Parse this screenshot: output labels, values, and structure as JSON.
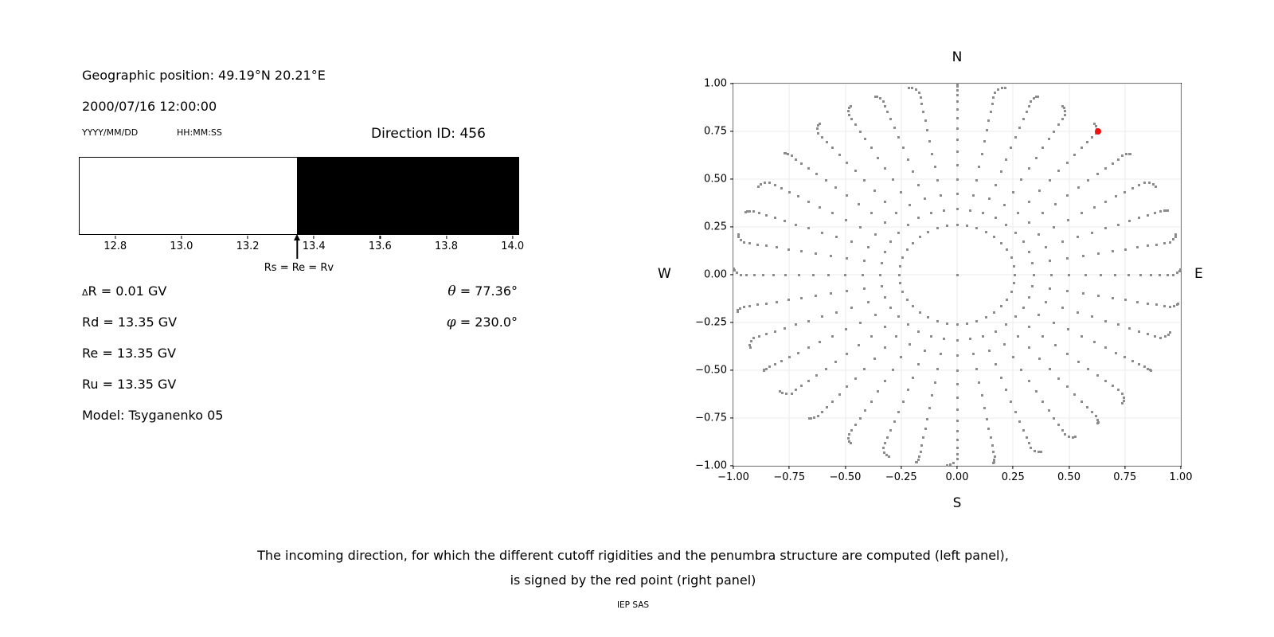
{
  "info_panel": {
    "geo_position": "Geographic position: 49.19°N 20.21°E",
    "datetime": "2000/07/16 12:00:00",
    "date_format_hint": "YYYY/MM/DD",
    "time_format_hint": "HH:MM:SS",
    "direction_id": "Direction ID: 456",
    "delta_r": {
      "sym": "Δ",
      "rest": "R = 0.01 GV"
    },
    "rd": "Rd = 13.35 GV",
    "re": "Re = 13.35 GV",
    "ru": "Ru = 13.35 GV",
    "model": "Model: Tsyganenko 05",
    "theta": {
      "sym": "θ",
      "rest": " = 77.36°"
    },
    "phi": {
      "sym": "φ",
      "rest": " = 230.0°"
    }
  },
  "caption": {
    "line1": "The incoming direction, for which the different cutoff rigidities and the penumbra structure are computed (left panel),",
    "line2": "is signed by the red point (right panel)",
    "credit": "IEP SAS"
  },
  "chart_data": [
    {
      "type": "bar",
      "name": "penumbra-structure",
      "description": "Penumbra structure of cutoff rigidity: white = allowed below 13.35 GV, black = forbidden above 13.35 GV",
      "xlim": [
        12.69,
        14.02
      ],
      "x_ticks": [
        12.8,
        13.0,
        13.2,
        13.4,
        13.6,
        13.8,
        14.0
      ],
      "x_tick_labels": [
        "12.8",
        "13.0",
        "13.2",
        "13.4",
        "13.6",
        "13.8",
        "14.0"
      ],
      "segments": [
        {
          "from": 12.69,
          "to": 13.35,
          "color": "#ffffff",
          "meaning": "allowed"
        },
        {
          "from": 13.35,
          "to": 14.02,
          "color": "#000000",
          "meaning": "forbidden"
        }
      ],
      "annotation": {
        "value": 13.35,
        "label": "Rs = Re = Rv"
      },
      "grid": false
    },
    {
      "type": "scatter",
      "name": "incoming-direction-map",
      "cardinals": {
        "top": "N",
        "bottom": "S",
        "left": "W",
        "right": "E"
      },
      "xlim": [
        -1,
        1
      ],
      "ylim": [
        -1,
        1
      ],
      "x_ticks": [
        -1,
        -0.75,
        -0.5,
        -0.25,
        0,
        0.25,
        0.5,
        0.75,
        1
      ],
      "x_tick_labels": [
        "−1.00",
        "−0.75",
        "−0.50",
        "−0.25",
        "0.00",
        "0.25",
        "0.50",
        "0.75",
        "1.00"
      ],
      "y_ticks": [
        -1,
        -0.75,
        -0.5,
        -0.25,
        0,
        0.25,
        0.5,
        0.75,
        1
      ],
      "y_tick_labels": [
        "−1.00",
        "−0.75",
        "−0.50",
        "−0.25",
        "0.00",
        "0.25",
        "0.50",
        "0.75",
        "1.00"
      ],
      "grid": true,
      "series": [
        {
          "name": "direction-grid",
          "marker": "square",
          "color": "#8c8c8c",
          "azimuth_start_deg": 0,
          "azimuth_step_deg": 10,
          "azimuth_count": 36,
          "zenith_start_deg": 15,
          "zenith_step_deg": 5,
          "zenith_end_deg": 90,
          "radius_mapping": "sin(zenith)",
          "includes_center_point": true,
          "tip_wobble_deg": 2.5
        },
        {
          "name": "selected-direction",
          "marker": "circle",
          "color": "#ee1111",
          "points": [
            {
              "x": 0.63,
              "y": 0.75
            }
          ]
        }
      ]
    }
  ]
}
